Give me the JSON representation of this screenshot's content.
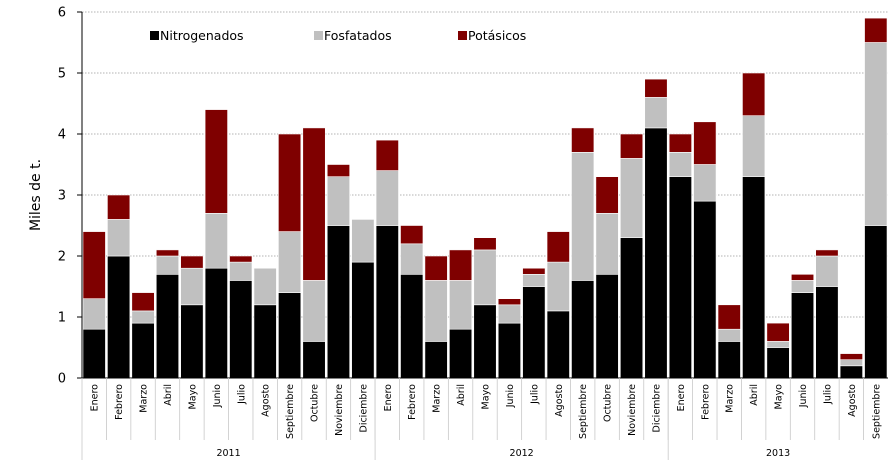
{
  "chart_data": {
    "type": "bar",
    "stacked": true,
    "title": "",
    "ylabel": "Miles de t.",
    "xlabel": "",
    "ylim": [
      0,
      6
    ],
    "yticks": [
      0,
      1,
      2,
      3,
      4,
      5,
      6
    ],
    "grid": true,
    "legend": "top-left",
    "years": [
      {
        "label": "2011",
        "count": 12
      },
      {
        "label": "2012",
        "count": 12
      },
      {
        "label": "2013",
        "count": 9
      }
    ],
    "categories": [
      "Enero",
      "Febrero",
      "Marzo",
      "Abril",
      "Mayo",
      "Junio",
      "Julio",
      "Agosto",
      "Septiembre",
      "Octubre",
      "Noviembre",
      "Diciembre",
      "Enero",
      "Febrero",
      "Marzo",
      "Abril",
      "Mayo",
      "Junio",
      "Julio",
      "Agosto",
      "Septiembre",
      "Octubre",
      "Noviembre",
      "Diciembre",
      "Enero",
      "Febrero",
      "Marzo",
      "Abril",
      "Mayo",
      "Junio",
      "Julio",
      "Agosto",
      "Septiembre"
    ],
    "series": [
      {
        "name": "Nitrogenados",
        "color": "#000000",
        "values": [
          0.8,
          2.0,
          0.9,
          1.7,
          1.2,
          1.8,
          1.6,
          1.2,
          1.4,
          0.6,
          2.5,
          1.9,
          2.5,
          1.7,
          0.6,
          0.8,
          1.2,
          0.9,
          1.5,
          1.1,
          1.6,
          1.7,
          2.3,
          4.1,
          3.3,
          2.9,
          0.6,
          3.3,
          0.5,
          1.4,
          1.5,
          0.2,
          2.5
        ]
      },
      {
        "name": "Fosfatados",
        "color": "#c0c0c0",
        "values": [
          0.5,
          0.6,
          0.2,
          0.3,
          0.6,
          0.9,
          0.3,
          0.6,
          1.0,
          1.0,
          0.8,
          0.7,
          0.9,
          0.5,
          1.0,
          0.8,
          0.9,
          0.3,
          0.2,
          0.8,
          2.1,
          1.0,
          1.3,
          0.5,
          0.4,
          0.6,
          0.2,
          1.0,
          0.1,
          0.2,
          0.5,
          0.1,
          3.0
        ]
      },
      {
        "name": "Potásicos",
        "color": "#7f0000",
        "values": [
          1.1,
          0.4,
          0.3,
          0.1,
          0.2,
          1.7,
          0.1,
          0.0,
          1.6,
          2.5,
          0.2,
          0.0,
          0.5,
          0.3,
          0.4,
          0.5,
          0.2,
          0.1,
          0.1,
          0.5,
          0.4,
          0.6,
          0.4,
          0.3,
          0.3,
          0.7,
          0.4,
          0.7,
          0.3,
          0.1,
          0.1,
          0.1,
          0.4
        ]
      }
    ]
  }
}
